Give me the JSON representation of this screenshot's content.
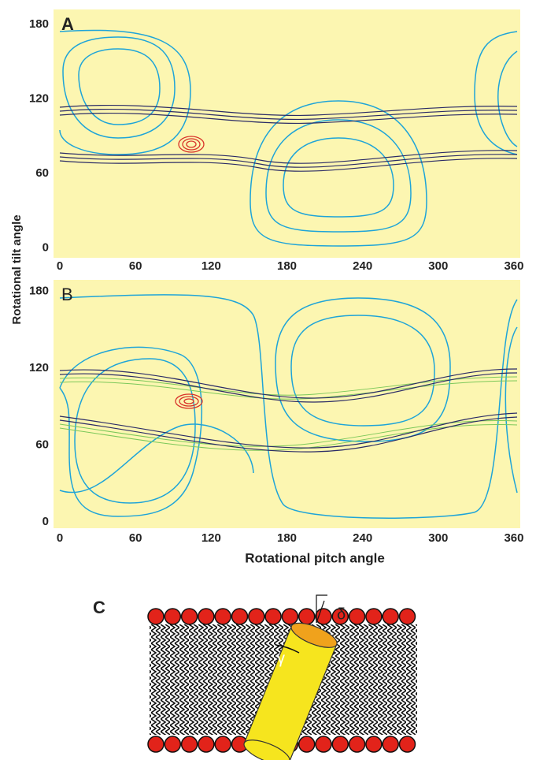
{
  "chart_data": [
    {
      "type": "contour",
      "panel_label": "A",
      "ylabel": "Rotational tilt angle",
      "xlim": [
        -5,
        365
      ],
      "ylim": [
        -8,
        192
      ],
      "xticks": [
        0,
        60,
        120,
        180,
        240,
        300,
        360
      ],
      "yticks": [
        0,
        60,
        120,
        180
      ]
    },
    {
      "type": "contour",
      "panel_label": "B",
      "xlabel": "Rotational pitch angle",
      "xlim": [
        -5,
        365
      ],
      "ylim": [
        -5,
        189
      ],
      "xticks": [
        0,
        60,
        120,
        180,
        240,
        300,
        360
      ],
      "yticks": [
        0,
        60,
        120,
        180
      ]
    }
  ],
  "diagram": {
    "label": "C",
    "symbols": [
      "δ",
      "γ"
    ]
  }
}
